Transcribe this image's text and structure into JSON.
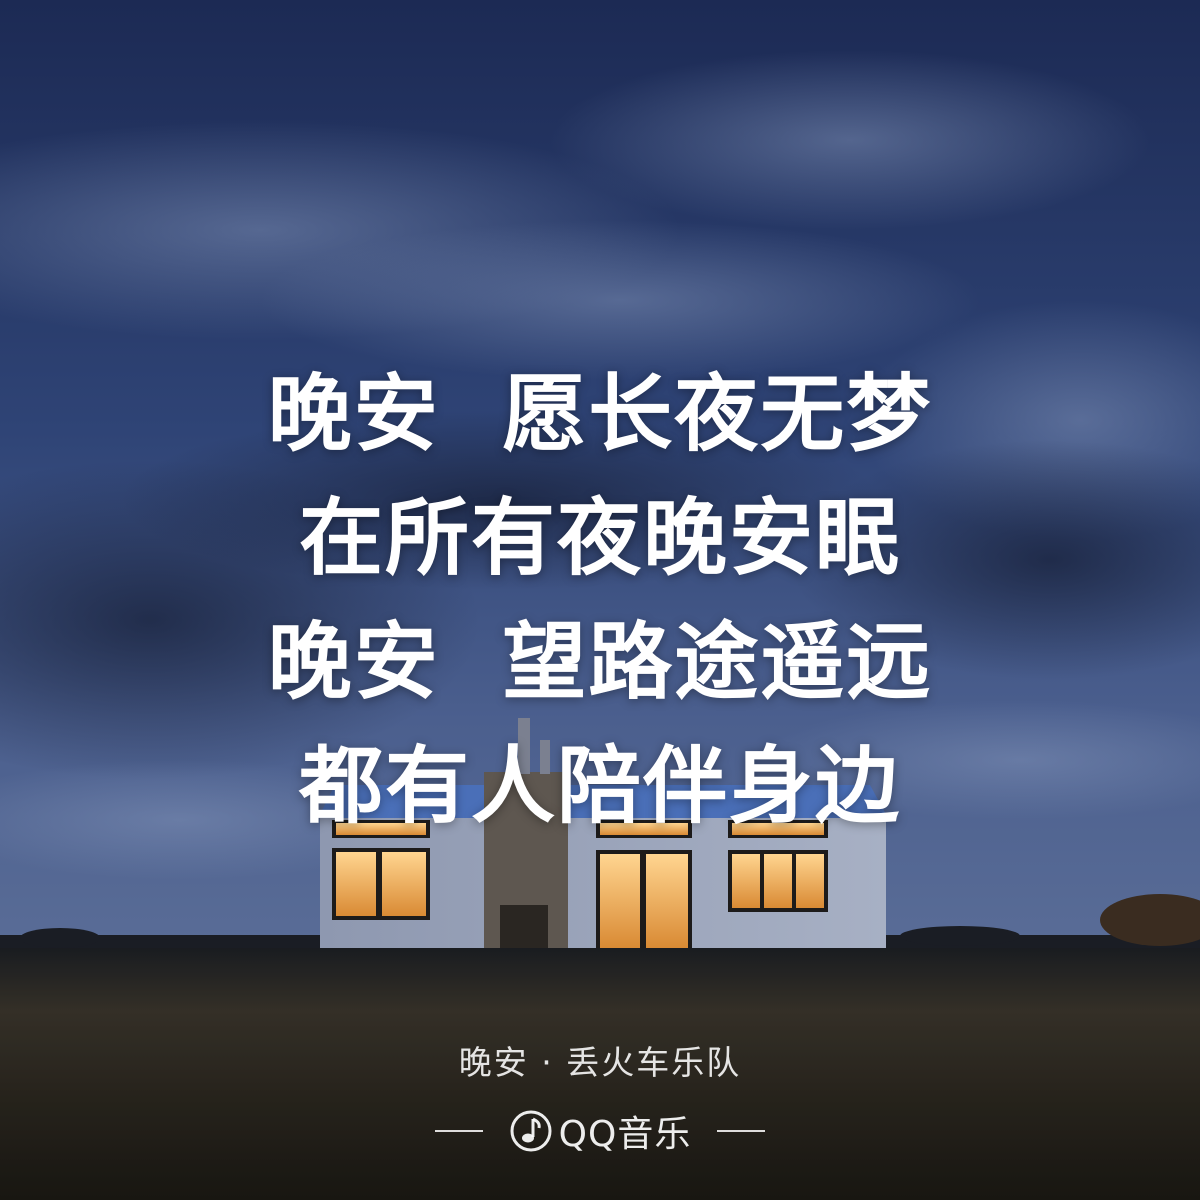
{
  "lyrics": [
    "晚安  愿长夜无梦",
    "在所有夜晚安眠",
    "晚安  望路途遥远",
    "都有人陪伴身边"
  ],
  "credit": "晚安 · 丢火车乐队",
  "brand": {
    "name": "QQ音乐",
    "icon": "music-note-icon"
  },
  "colors": {
    "sky_top": "#1e2d57",
    "sky_bottom": "#4a5e8c",
    "window_light": "#f2b762",
    "grass": "#2a2620"
  }
}
